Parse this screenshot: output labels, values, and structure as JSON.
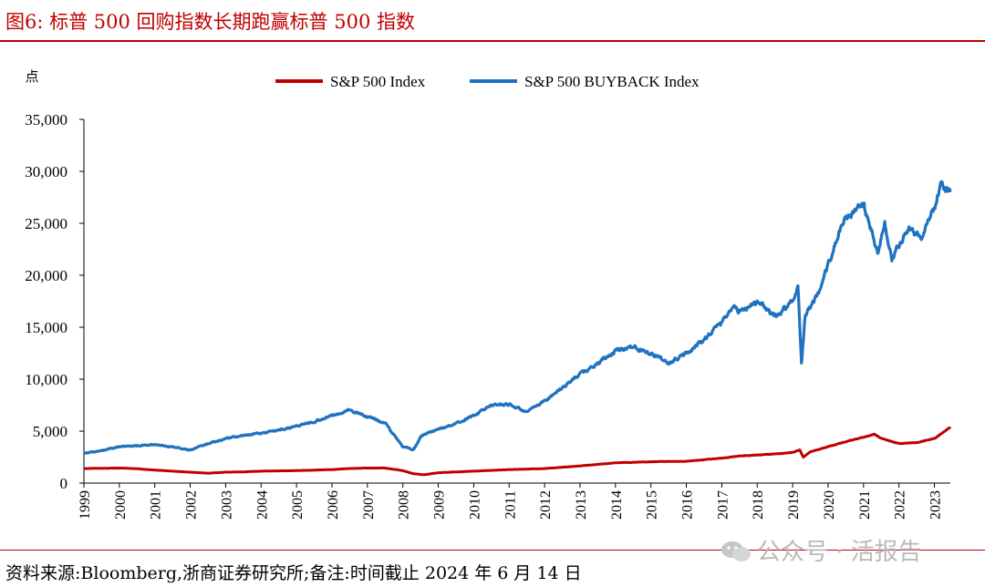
{
  "header": {
    "title": "图6:   标普 500 回购指数长期跑赢标普 500 指数"
  },
  "footer": {
    "source": "资料来源:Bloomberg,浙商证券研究所;备注:时间截止 2024 年 6 月 14 日",
    "watermark": "公众号 · 活报告"
  },
  "colors": {
    "title": "#c00000",
    "sp500": "#c00000",
    "buyback": "#1f72c0"
  },
  "chart_data": {
    "type": "line",
    "title": "",
    "ylabel": "点",
    "xlabel": "",
    "ylim": [
      0,
      35000
    ],
    "yticks": [
      0,
      5000,
      10000,
      15000,
      20000,
      25000,
      30000,
      35000
    ],
    "ytick_labels": [
      "0",
      "5,000",
      "10,000",
      "15,000",
      "20,000",
      "25,000",
      "30,000",
      "35,000"
    ],
    "xlim": [
      1999,
      2023.45
    ],
    "xticks": [
      1999,
      2000,
      2001,
      2002,
      2003,
      2004,
      2005,
      2006,
      2007,
      2008,
      2009,
      2010,
      2011,
      2012,
      2013,
      2014,
      2015,
      2016,
      2017,
      2018,
      2019,
      2020,
      2021,
      2022,
      2023
    ],
    "xtick_labels": [
      "1999",
      "2000",
      "2001",
      "2002",
      "2003",
      "2004",
      "2005",
      "2006",
      "2007",
      "2008",
      "2009",
      "2010",
      "2011",
      "2012",
      "2013",
      "2014",
      "2015",
      "2016",
      "2017",
      "2018",
      "2019",
      "2020",
      "2021",
      "2022",
      "2023"
    ],
    "legend_position": "top-center",
    "series": [
      {
        "name": "S&P 500 Index",
        "color": "#c00000",
        "x": [
          1999,
          1999.5,
          2000,
          2000.5,
          2001,
          2001.5,
          2002,
          2002.5,
          2003,
          2003.5,
          2004,
          2005,
          2006,
          2006.5,
          2007,
          2007.5,
          2008,
          2008.3,
          2008.6,
          2009,
          2010,
          2011,
          2012,
          2013,
          2014,
          2015,
          2016,
          2017,
          2017.5,
          2018,
          2018.5,
          2019,
          2019.2,
          2019.3,
          2019.5,
          2020,
          2020.5,
          2021,
          2021.3,
          2021.5,
          2022,
          2022.5,
          2023,
          2023.45
        ],
        "values": [
          1400,
          1420,
          1450,
          1380,
          1250,
          1150,
          1050,
          950,
          1050,
          1080,
          1150,
          1200,
          1300,
          1400,
          1450,
          1450,
          1200,
          900,
          800,
          1000,
          1150,
          1300,
          1400,
          1650,
          1950,
          2050,
          2100,
          2400,
          2600,
          2700,
          2800,
          2950,
          3200,
          2500,
          3000,
          3500,
          4000,
          4400,
          4700,
          4300,
          3800,
          3900,
          4300,
          5400
        ]
      },
      {
        "name": "S&P 500 BUYBACK Index",
        "color": "#1f72c0",
        "x": [
          1999,
          1999.5,
          2000,
          2000.5,
          2001,
          2001.5,
          2002,
          2002.5,
          2003,
          2003.5,
          2004,
          2004.5,
          2005,
          2005.5,
          2006,
          2006.5,
          2007,
          2007.5,
          2008,
          2008.3,
          2008.5,
          2009,
          2009.5,
          2010,
          2010.5,
          2011,
          2011.5,
          2012,
          2012.5,
          2013,
          2013.5,
          2014,
          2014.5,
          2015,
          2015.5,
          2016,
          2016.5,
          2017,
          2017.3,
          2017.5,
          2018,
          2018.5,
          2019,
          2019.15,
          2019.25,
          2019.35,
          2019.5,
          2019.8,
          2020,
          2020.3,
          2020.5,
          2021,
          2021.2,
          2021.4,
          2021.6,
          2021.8,
          2022,
          2022.3,
          2022.6,
          2023,
          2023.2,
          2023.45
        ],
        "values": [
          2900,
          3100,
          3500,
          3600,
          3700,
          3500,
          3200,
          3800,
          4300,
          4600,
          4800,
          5100,
          5500,
          5900,
          6500,
          7000,
          6400,
          5800,
          3500,
          3200,
          4500,
          5200,
          5700,
          6500,
          7500,
          7600,
          6800,
          7900,
          9200,
          10500,
          11500,
          12700,
          13200,
          12500,
          11500,
          12500,
          13800,
          15500,
          17000,
          16500,
          17500,
          16000,
          17500,
          19000,
          11500,
          16000,
          17000,
          18500,
          21000,
          24000,
          25500,
          26800,
          24500,
          22000,
          25000,
          21500,
          23000,
          24500,
          23500,
          26500,
          29000,
          28000
        ]
      }
    ]
  }
}
